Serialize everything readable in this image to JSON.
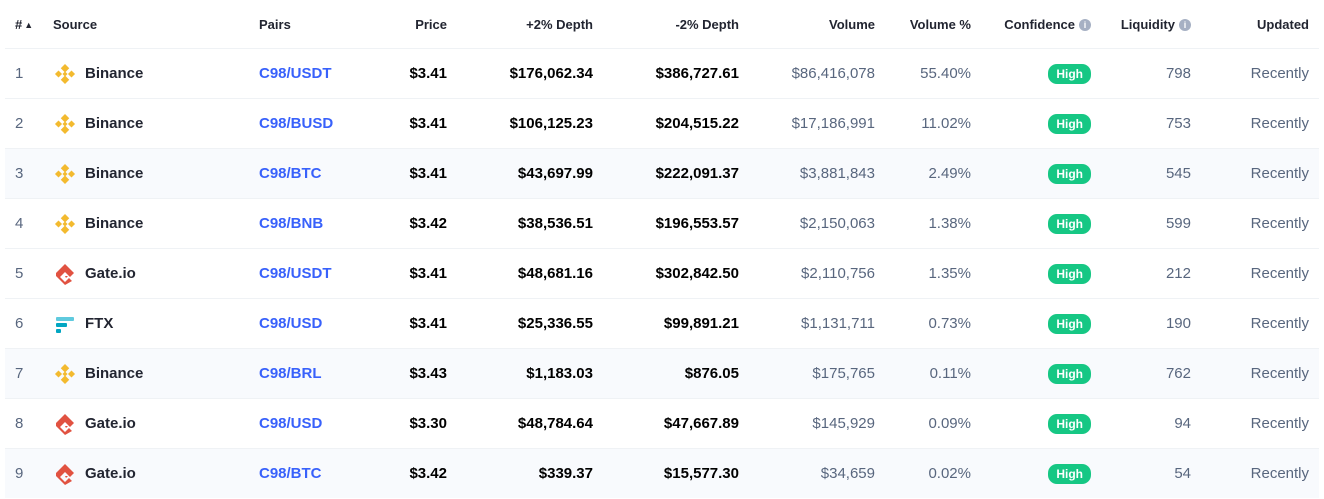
{
  "headers": {
    "rank": "#",
    "source": "Source",
    "pairs": "Pairs",
    "price": "Price",
    "depth_plus": "+2% Depth",
    "depth_minus": "-2% Depth",
    "volume": "Volume",
    "volume_pct": "Volume %",
    "confidence": "Confidence",
    "liquidity": "Liquidity",
    "updated": "Updated"
  },
  "icons": {
    "sort": "sort-ascending-icon",
    "info": "info-icon",
    "binance": "binance-logo",
    "gateio": "gateio-logo",
    "ftx": "ftx-logo"
  },
  "colors": {
    "link": "#3861fb",
    "badge_high": "#16c784",
    "binance": "#f3ba2f",
    "gateio": "#e15241",
    "ftx": "#02a6c2",
    "alt_row": "#f8fafd"
  },
  "rows": [
    {
      "rank": "1",
      "source": "Binance",
      "logo": "binance",
      "pair": "C98/USDT",
      "price": "$3.41",
      "depth_plus": "$176,062.34",
      "depth_minus": "$386,727.61",
      "volume": "$86,416,078",
      "volume_pct": "55.40%",
      "confidence": "High",
      "liquidity": "798",
      "updated": "Recently",
      "alt": false
    },
    {
      "rank": "2",
      "source": "Binance",
      "logo": "binance",
      "pair": "C98/BUSD",
      "price": "$3.41",
      "depth_plus": "$106,125.23",
      "depth_minus": "$204,515.22",
      "volume": "$17,186,991",
      "volume_pct": "11.02%",
      "confidence": "High",
      "liquidity": "753",
      "updated": "Recently",
      "alt": false
    },
    {
      "rank": "3",
      "source": "Binance",
      "logo": "binance",
      "pair": "C98/BTC",
      "price": "$3.41",
      "depth_plus": "$43,697.99",
      "depth_minus": "$222,091.37",
      "volume": "$3,881,843",
      "volume_pct": "2.49%",
      "confidence": "High",
      "liquidity": "545",
      "updated": "Recently",
      "alt": true
    },
    {
      "rank": "4",
      "source": "Binance",
      "logo": "binance",
      "pair": "C98/BNB",
      "price": "$3.42",
      "depth_plus": "$38,536.51",
      "depth_minus": "$196,553.57",
      "volume": "$2,150,063",
      "volume_pct": "1.38%",
      "confidence": "High",
      "liquidity": "599",
      "updated": "Recently",
      "alt": false
    },
    {
      "rank": "5",
      "source": "Gate.io",
      "logo": "gateio",
      "pair": "C98/USDT",
      "price": "$3.41",
      "depth_plus": "$48,681.16",
      "depth_minus": "$302,842.50",
      "volume": "$2,110,756",
      "volume_pct": "1.35%",
      "confidence": "High",
      "liquidity": "212",
      "updated": "Recently",
      "alt": false
    },
    {
      "rank": "6",
      "source": "FTX",
      "logo": "ftx",
      "pair": "C98/USD",
      "price": "$3.41",
      "depth_plus": "$25,336.55",
      "depth_minus": "$99,891.21",
      "volume": "$1,131,711",
      "volume_pct": "0.73%",
      "confidence": "High",
      "liquidity": "190",
      "updated": "Recently",
      "alt": false
    },
    {
      "rank": "7",
      "source": "Binance",
      "logo": "binance",
      "pair": "C98/BRL",
      "price": "$3.43",
      "depth_plus": "$1,183.03",
      "depth_minus": "$876.05",
      "volume": "$175,765",
      "volume_pct": "0.11%",
      "confidence": "High",
      "liquidity": "762",
      "updated": "Recently",
      "alt": true
    },
    {
      "rank": "8",
      "source": "Gate.io",
      "logo": "gateio",
      "pair": "C98/USD",
      "price": "$3.30",
      "depth_plus": "$48,784.64",
      "depth_minus": "$47,667.89",
      "volume": "$145,929",
      "volume_pct": "0.09%",
      "confidence": "High",
      "liquidity": "94",
      "updated": "Recently",
      "alt": false
    },
    {
      "rank": "9",
      "source": "Gate.io",
      "logo": "gateio",
      "pair": "C98/BTC",
      "price": "$3.42",
      "depth_plus": "$339.37",
      "depth_minus": "$15,577.30",
      "volume": "$34,659",
      "volume_pct": "0.02%",
      "confidence": "High",
      "liquidity": "54",
      "updated": "Recently",
      "alt": true
    }
  ]
}
